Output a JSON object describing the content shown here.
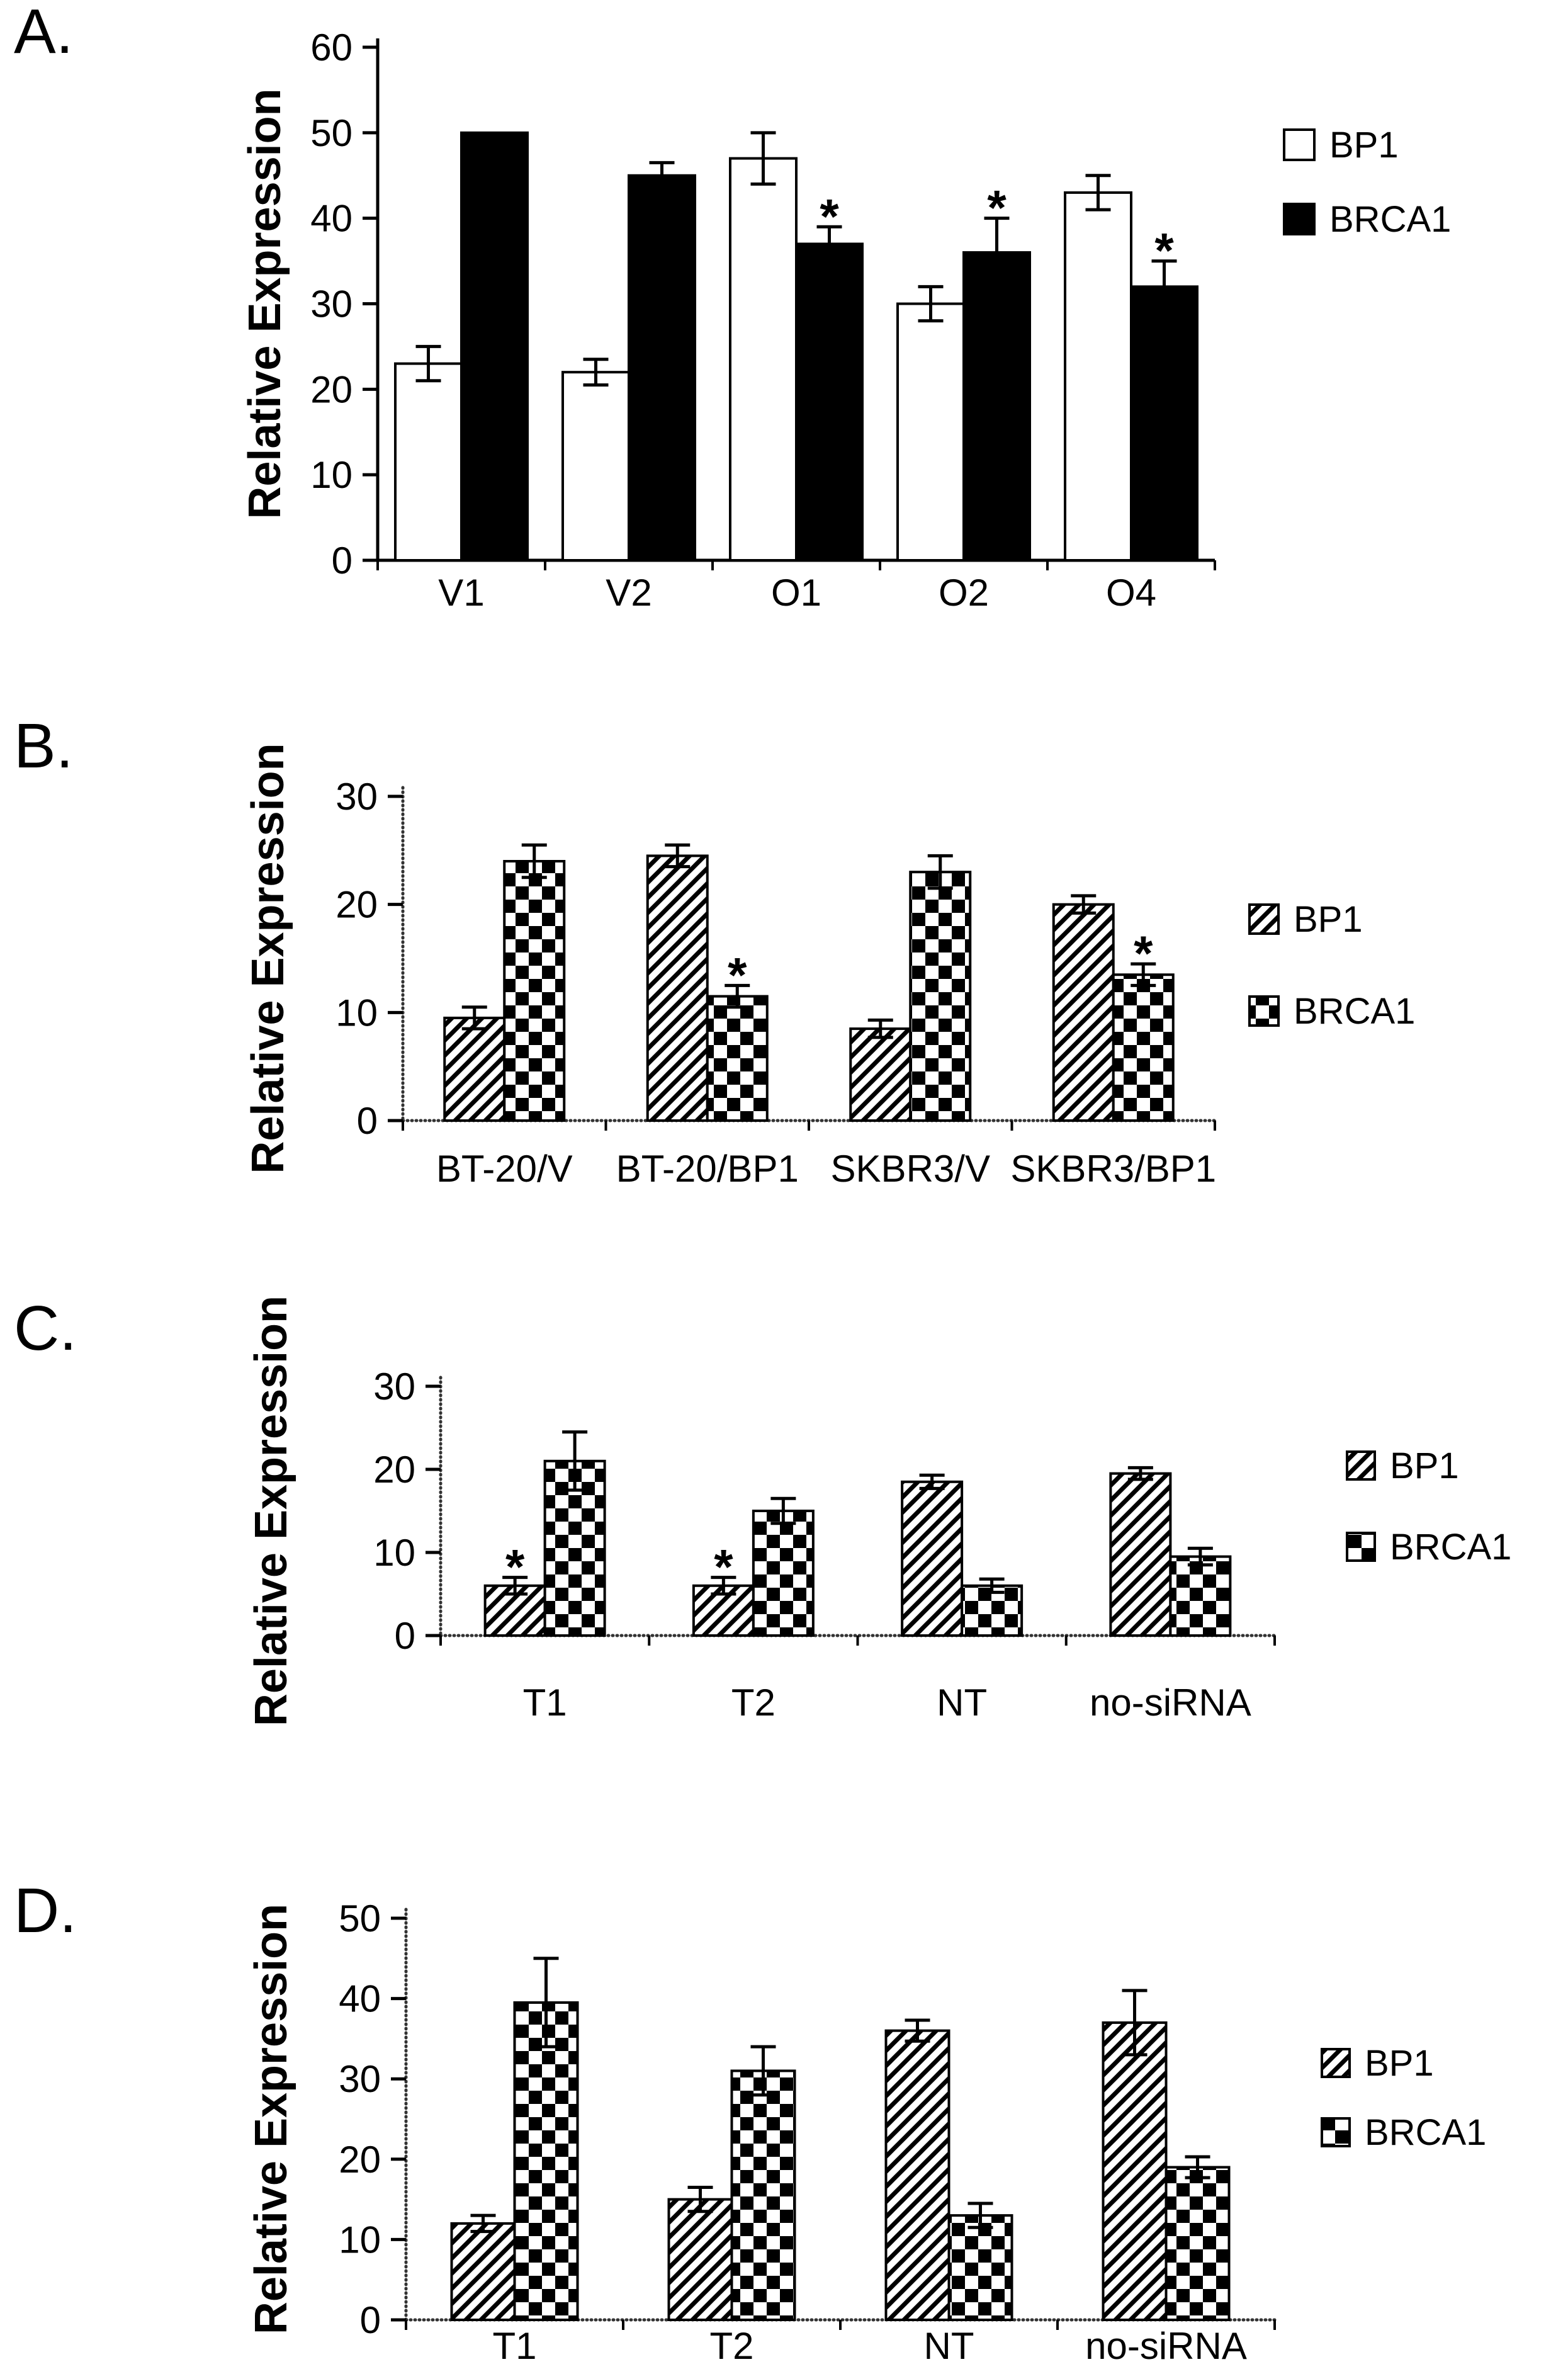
{
  "figure": {
    "background": "#ffffff"
  },
  "colors": {
    "bar_black": "#000000",
    "bar_white": "#ffffff",
    "axis": "#000000",
    "text": "#000000"
  },
  "chart_data": [
    {
      "panel": "A.",
      "type": "bar",
      "ylabel": "Relative Expression",
      "ylim": [
        0,
        60
      ],
      "yticks": [
        0,
        10,
        20,
        30,
        40,
        50,
        60
      ],
      "categories": [
        "V1",
        "V2",
        "O1",
        "O2",
        "O4"
      ],
      "grid": false,
      "legend_position": "right",
      "series": [
        {
          "name": "BP1",
          "style": "open",
          "values": [
            23,
            22,
            47,
            30,
            43
          ],
          "errors": [
            2,
            1.5,
            3,
            2,
            2
          ],
          "significant": [
            false,
            false,
            false,
            false,
            false
          ]
        },
        {
          "name": "BRCA1",
          "style": "solid",
          "values": [
            50,
            45,
            37,
            36,
            32
          ],
          "errors": [
            0,
            1.5,
            2,
            4,
            3
          ],
          "significant": [
            false,
            false,
            true,
            true,
            true
          ]
        }
      ]
    },
    {
      "panel": "B.",
      "type": "bar",
      "ylabel": "Relative Expression",
      "ylim": [
        0,
        30
      ],
      "yticks": [
        0,
        10,
        20,
        30
      ],
      "categories": [
        "BT-20/V",
        "BT-20/BP1",
        "SKBR3/V",
        "SKBR3/BP1"
      ],
      "grid": false,
      "legend_position": "right",
      "series": [
        {
          "name": "BP1",
          "style": "hatch",
          "values": [
            9.5,
            24.5,
            8.5,
            20
          ],
          "errors": [
            1,
            1,
            0.8,
            0.8
          ],
          "significant": [
            false,
            false,
            false,
            false
          ]
        },
        {
          "name": "BRCA1",
          "style": "checker",
          "values": [
            24,
            11.5,
            23,
            13.5
          ],
          "errors": [
            1.5,
            1,
            1.5,
            1
          ],
          "significant": [
            false,
            true,
            false,
            true
          ]
        }
      ]
    },
    {
      "panel": "C.",
      "type": "bar",
      "ylabel": "Relative Expression",
      "ylim": [
        0,
        30
      ],
      "yticks": [
        0,
        10,
        20,
        30
      ],
      "categories": [
        "T1",
        "T2",
        "NT",
        "no-siRNA"
      ],
      "grid": false,
      "legend_position": "right",
      "series": [
        {
          "name": "BP1",
          "style": "hatch",
          "values": [
            6,
            6,
            18.5,
            19.5
          ],
          "errors": [
            1,
            1,
            0.8,
            0.7
          ],
          "significant": [
            true,
            true,
            false,
            false
          ]
        },
        {
          "name": "BRCA1",
          "style": "checker",
          "values": [
            21,
            15,
            6,
            9.5
          ],
          "errors": [
            3.5,
            1.5,
            0.8,
            1
          ],
          "significant": [
            false,
            false,
            false,
            false
          ]
        }
      ]
    },
    {
      "panel": "D.",
      "type": "bar",
      "ylabel": "Relative Expression",
      "ylim": [
        0,
        50
      ],
      "yticks": [
        0,
        10,
        20,
        30,
        40,
        50
      ],
      "categories": [
        "T1",
        "T2",
        "NT",
        "no-siRNA"
      ],
      "grid": false,
      "legend_position": "right",
      "series": [
        {
          "name": "BP1",
          "style": "hatch",
          "values": [
            12,
            15,
            36,
            37
          ],
          "errors": [
            1,
            1.5,
            1.3,
            4
          ],
          "significant": [
            false,
            false,
            false,
            false
          ]
        },
        {
          "name": "BRCA1",
          "style": "checker",
          "values": [
            39.5,
            31,
            13,
            19
          ],
          "errors": [
            5.5,
            3,
            1.5,
            1.3
          ],
          "significant": [
            false,
            false,
            false,
            false
          ]
        }
      ]
    }
  ]
}
